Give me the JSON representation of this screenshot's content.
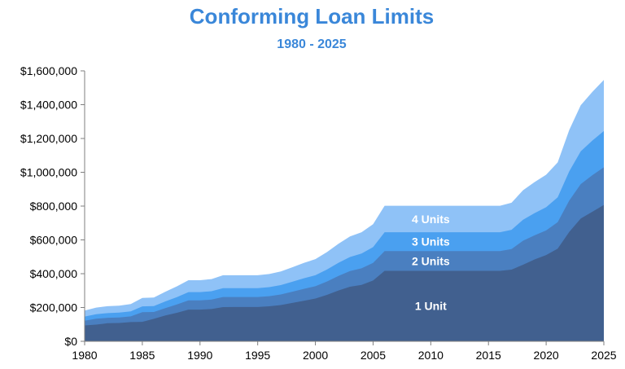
{
  "chart_data": {
    "type": "area",
    "title": "Conforming Loan Limits",
    "subtitle": "1980 - 2025",
    "xlabel": "",
    "ylabel": "",
    "xlim": [
      1980,
      2025
    ],
    "ylim": [
      0,
      1600000
    ],
    "x_ticks": [
      "1980",
      "1985",
      "1990",
      "1995",
      "2000",
      "2005",
      "2010",
      "2015",
      "2020",
      "2025"
    ],
    "y_ticks": [
      "$0",
      "$200,000",
      "$400,000",
      "$600,000",
      "$800,000",
      "$1,000,000",
      "$1,200,000",
      "$1,400,000",
      "$1,600,000"
    ],
    "grid": false,
    "legend": "none",
    "stacked": false,
    "x": [
      1980,
      1981,
      1982,
      1983,
      1984,
      1985,
      1986,
      1987,
      1988,
      1989,
      1990,
      1991,
      1992,
      1993,
      1994,
      1995,
      1996,
      1997,
      1998,
      1999,
      2000,
      2001,
      2002,
      2003,
      2004,
      2005,
      2006,
      2007,
      2008,
      2009,
      2010,
      2011,
      2012,
      2013,
      2014,
      2015,
      2016,
      2017,
      2018,
      2019,
      2020,
      2021,
      2022,
      2023,
      2024,
      2025
    ],
    "series": [
      {
        "name": "4 Units",
        "color": "#8fc2f7",
        "values": [
          181800,
          199300,
          207850,
          210800,
          220300,
          256800,
          258800,
          293600,
          325300,
          361450,
          361450,
          368350,
          391000,
          391000,
          391000,
          391000,
          398100,
          413550,
          438150,
          463600,
          486150,
          527550,
          577350,
          620200,
          645300,
          692800,
          801950,
          801950,
          801950,
          801950,
          801950,
          801950,
          801950,
          801950,
          801950,
          801950,
          801950,
          820000,
          893850,
          942300,
          985750,
          1058350,
          1249750,
          1396800,
          1475550,
          1546250
        ]
      },
      {
        "name": "3 Units",
        "color": "#4aa0f0",
        "values": [
          146300,
          160350,
          167150,
          169650,
          177250,
          206650,
          208300,
          236200,
          261700,
          290850,
          290850,
          296400,
          314600,
          314600,
          314600,
          314600,
          320300,
          332750,
          352500,
          373000,
          391150,
          424450,
          464550,
          499000,
          519300,
          557500,
          645300,
          645300,
          645300,
          645300,
          645300,
          645300,
          645300,
          645300,
          645300,
          645300,
          645300,
          659550,
          719200,
          758300,
          793300,
          851700,
          1005700,
          1124100,
          1187300,
          1244150
        ]
      },
      {
        "name": "2 Units",
        "color": "#4a7fc0",
        "values": [
          121800,
          133500,
          139200,
          141250,
          147500,
          172000,
          173400,
          196600,
          217800,
          242050,
          242050,
          246750,
          261850,
          261850,
          261850,
          261850,
          266600,
          276950,
          293450,
          310500,
          325650,
          353350,
          386650,
          415350,
          432000,
          463950,
          533850,
          533850,
          533850,
          533850,
          533850,
          533850,
          533850,
          533850,
          533850,
          533850,
          533850,
          545700,
          595000,
          627300,
          656300,
          704650,
          832750,
          930300,
          982500,
          1029550
        ]
      },
      {
        "name": "1 Unit",
        "color": "#41608f",
        "values": [
          93750,
          98500,
          107000,
          108300,
          114000,
          115300,
          133250,
          153100,
          168700,
          187600,
          187450,
          191250,
          202300,
          203150,
          203150,
          203150,
          207000,
          214600,
          227150,
          240000,
          252700,
          275000,
          300700,
          322700,
          333700,
          359650,
          417000,
          417000,
          417000,
          417000,
          417000,
          417000,
          417000,
          417000,
          417000,
          417000,
          417000,
          424100,
          453100,
          484350,
          510400,
          548250,
          647200,
          726200,
          766550,
          806500
        ]
      }
    ]
  }
}
